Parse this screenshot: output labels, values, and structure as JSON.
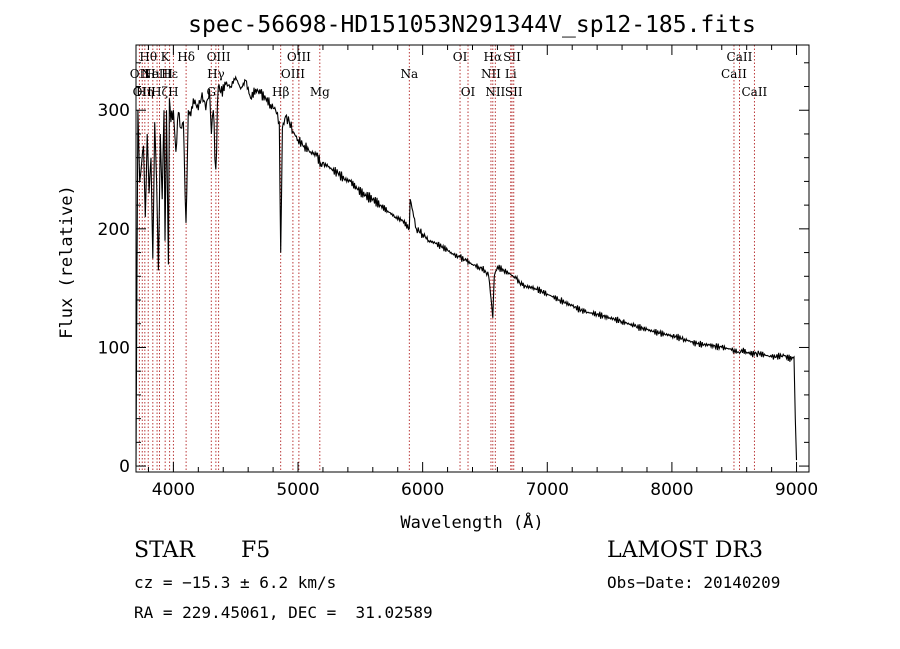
{
  "chart_data": {
    "type": "line",
    "title": "spec-56698-HD151053N291344V_sp12-185.fits",
    "xlabel": "Wavelength (Å)",
    "ylabel": "Flux (relative)",
    "xlim": [
      3700,
      9100
    ],
    "ylim": [
      -5,
      355
    ],
    "xticks": [
      4000,
      5000,
      6000,
      7000,
      8000,
      9000
    ],
    "yticks": [
      0,
      100,
      200,
      300
    ],
    "series": [
      {
        "name": "spectrum",
        "x": [
          3700,
          3715,
          3730,
          3745,
          3760,
          3775,
          3790,
          3805,
          3820,
          3835,
          3850,
          3865,
          3880,
          3895,
          3910,
          3925,
          3933,
          3945,
          3960,
          3968,
          3980,
          4000,
          4020,
          4040,
          4060,
          4080,
          4101,
          4120,
          4140,
          4160,
          4180,
          4200,
          4230,
          4260,
          4290,
          4305,
          4320,
          4340,
          4360,
          4380,
          4420,
          4460,
          4500,
          4540,
          4580,
          4620,
          4660,
          4700,
          4740,
          4780,
          4820,
          4850,
          4861,
          4875,
          4900,
          4930,
          4960,
          5000,
          5050,
          5100,
          5150,
          5183,
          5220,
          5270,
          5320,
          5370,
          5420,
          5480,
          5540,
          5600,
          5660,
          5720,
          5780,
          5840,
          5893,
          5900,
          5950,
          6000,
          6050,
          6100,
          6150,
          6200,
          6250,
          6300,
          6350,
          6400,
          6450,
          6500,
          6530,
          6550,
          6563,
          6575,
          6600,
          6650,
          6700,
          6750,
          6800,
          6900,
          7000,
          7100,
          7200,
          7300,
          7400,
          7500,
          7600,
          7700,
          7800,
          7900,
          8000,
          8100,
          8200,
          8300,
          8400,
          8500,
          8542,
          8560,
          8600,
          8662,
          8700,
          8800,
          8900,
          8960,
          8980,
          8990,
          9000
        ],
        "y": [
          0,
          300,
          240,
          255,
          270,
          210,
          280,
          230,
          260,
          175,
          290,
          240,
          165,
          280,
          225,
          300,
          190,
          300,
          170,
          310,
          290,
          300,
          265,
          298,
          285,
          290,
          205,
          300,
          295,
          310,
          305,
          300,
          315,
          300,
          318,
          280,
          300,
          250,
          320,
          315,
          322,
          320,
          328,
          318,
          325,
          310,
          318,
          314,
          310,
          305,
          300,
          290,
          180,
          285,
          295,
          290,
          282,
          275,
          270,
          265,
          262,
          255,
          255,
          250,
          247,
          242,
          240,
          233,
          228,
          225,
          220,
          215,
          210,
          207,
          200,
          225,
          200,
          196,
          190,
          188,
          185,
          182,
          178,
          176,
          173,
          170,
          168,
          165,
          160,
          140,
          125,
          160,
          168,
          165,
          162,
          158,
          152,
          150,
          145,
          140,
          135,
          130,
          128,
          125,
          122,
          118,
          115,
          112,
          110,
          107,
          103,
          102,
          100,
          98,
          95,
          98,
          96,
          94,
          95,
          92,
          93,
          90,
          92,
          40,
          5
        ]
      }
    ],
    "lines": [
      {
        "wl": 3727,
        "label": "OII",
        "row": 2
      },
      {
        "wl": 3750,
        "label": "OII",
        "row": 3
      },
      {
        "wl": 3771,
        "label": "Hη",
        "row": 3
      },
      {
        "wl": 3798,
        "label": "Hθ",
        "row": 1
      },
      {
        "wl": 3835,
        "label": "Hι",
        "row": 2
      },
      {
        "wl": 3869,
        "label": "NeIII",
        "row": 2
      },
      {
        "wl": 3889,
        "label": "Hζ",
        "row": 3
      },
      {
        "wl": 3934,
        "label": "K",
        "row": 1
      },
      {
        "wl": 3970,
        "label": "Hε",
        "row": 2
      },
      {
        "wl": 4000,
        "label": "H",
        "row": 3
      },
      {
        "wl": 4102,
        "label": "Hδ",
        "row": 1
      },
      {
        "wl": 4304,
        "label": "G",
        "row": 3
      },
      {
        "wl": 4341,
        "label": "Hγ",
        "row": 2
      },
      {
        "wl": 4363,
        "label": "OIII",
        "row": 1
      },
      {
        "wl": 4861,
        "label": "Hβ",
        "row": 3
      },
      {
        "wl": 4959,
        "label": "OIII",
        "row": 2
      },
      {
        "wl": 5007,
        "label": "OIII",
        "row": 1
      },
      {
        "wl": 5175,
        "label": "Mg",
        "row": 3
      },
      {
        "wl": 5893,
        "label": "Na",
        "row": 2
      },
      {
        "wl": 6300,
        "label": "OI",
        "row": 1
      },
      {
        "wl": 6364,
        "label": "OI",
        "row": 3
      },
      {
        "wl": 6548,
        "label": "NII",
        "row": 2
      },
      {
        "wl": 6563,
        "label": "Hα",
        "row": 1
      },
      {
        "wl": 6583,
        "label": "NII",
        "row": 3
      },
      {
        "wl": 6707,
        "label": "Li",
        "row": 2
      },
      {
        "wl": 6717,
        "label": "SII",
        "row": 1
      },
      {
        "wl": 6731,
        "label": "SII",
        "row": 3
      },
      {
        "wl": 8498,
        "label": "CaII",
        "row": 2
      },
      {
        "wl": 8542,
        "label": "CaII",
        "row": 1
      },
      {
        "wl": 8662,
        "label": "CaII",
        "row": 3
      }
    ]
  },
  "info": {
    "object_class": "STAR",
    "subclass": "F5",
    "cz": "cz = −15.3 ± 6.2 km/s",
    "coords": "RA = 229.45061, DEC =  31.02589",
    "survey": "LAMOST DR3",
    "obs_date": "Obs−Date: 20140209"
  }
}
